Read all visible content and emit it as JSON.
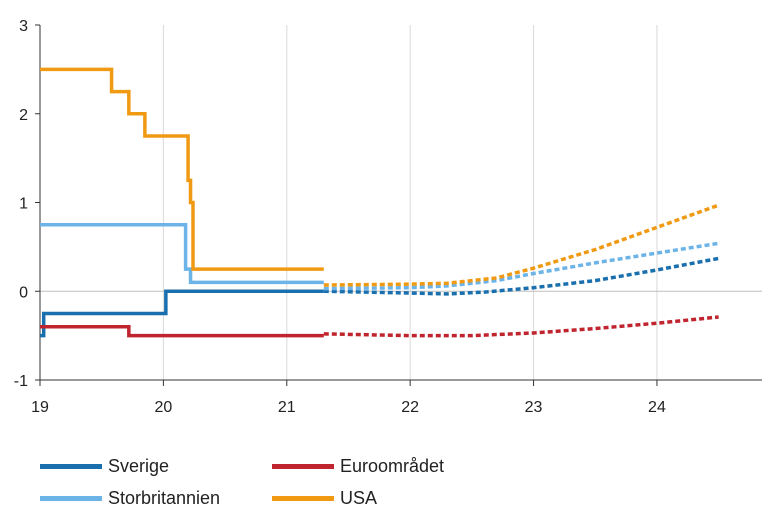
{
  "chart_data": {
    "type": "line",
    "title": "",
    "xlabel": "",
    "ylabel": "",
    "xlim": [
      19,
      24.9
    ],
    "ylim": [
      -1,
      3
    ],
    "x_ticks": [
      "19",
      "20",
      "21",
      "22",
      "23",
      "24"
    ],
    "y_ticks": [
      "-1",
      "0",
      "1",
      "2",
      "3"
    ],
    "grid": "vertical",
    "legend_position": "bottom",
    "series": [
      {
        "name": "Sverige",
        "color": "#1a6fae",
        "step": true,
        "actual": [
          [
            19.0,
            -0.5
          ],
          [
            19.03,
            -0.25
          ],
          [
            20.02,
            0.0
          ],
          [
            21.3,
            0.0
          ]
        ],
        "forecast": [
          [
            21.3,
            0.0
          ],
          [
            22.0,
            -0.02
          ],
          [
            22.3,
            -0.03
          ],
          [
            22.6,
            -0.01
          ],
          [
            23.0,
            0.04
          ],
          [
            23.5,
            0.12
          ],
          [
            24.0,
            0.24
          ],
          [
            24.5,
            0.37
          ]
        ]
      },
      {
        "name": "Euroområdet",
        "color": "#c0252f",
        "step": true,
        "actual": [
          [
            19.0,
            -0.4
          ],
          [
            19.72,
            -0.5
          ],
          [
            21.3,
            -0.5
          ]
        ],
        "forecast": [
          [
            21.3,
            -0.48
          ],
          [
            22.0,
            -0.5
          ],
          [
            22.5,
            -0.5
          ],
          [
            23.0,
            -0.47
          ],
          [
            23.5,
            -0.42
          ],
          [
            24.0,
            -0.36
          ],
          [
            24.5,
            -0.29
          ]
        ]
      },
      {
        "name": "Storbritannien",
        "color": "#6cb4e8",
        "step": true,
        "actual": [
          [
            19.0,
            0.75
          ],
          [
            20.18,
            0.25
          ],
          [
            20.22,
            0.1
          ],
          [
            21.3,
            0.1
          ]
        ],
        "forecast": [
          [
            21.3,
            0.03
          ],
          [
            22.0,
            0.04
          ],
          [
            22.3,
            0.06
          ],
          [
            22.7,
            0.12
          ],
          [
            23.0,
            0.2
          ],
          [
            23.5,
            0.32
          ],
          [
            24.0,
            0.43
          ],
          [
            24.5,
            0.54
          ]
        ]
      },
      {
        "name": "USA",
        "color": "#f09a14",
        "step": true,
        "actual": [
          [
            19.0,
            2.5
          ],
          [
            19.58,
            2.25
          ],
          [
            19.72,
            2.0
          ],
          [
            19.85,
            1.75
          ],
          [
            20.2,
            1.25
          ],
          [
            20.22,
            1.0
          ],
          [
            20.24,
            0.25
          ],
          [
            21.3,
            0.25
          ]
        ],
        "forecast": [
          [
            21.3,
            0.07
          ],
          [
            22.0,
            0.08
          ],
          [
            22.3,
            0.09
          ],
          [
            22.7,
            0.15
          ],
          [
            23.0,
            0.26
          ],
          [
            23.5,
            0.47
          ],
          [
            24.0,
            0.72
          ],
          [
            24.5,
            0.97
          ]
        ]
      }
    ]
  },
  "legend": [
    {
      "label": "Sverige",
      "color": "#1a6fae"
    },
    {
      "label": "Euroområdet",
      "color": "#c0252f"
    },
    {
      "label": "Storbritannien",
      "color": "#6cb4e8"
    },
    {
      "label": "USA",
      "color": "#f09a14"
    }
  ]
}
